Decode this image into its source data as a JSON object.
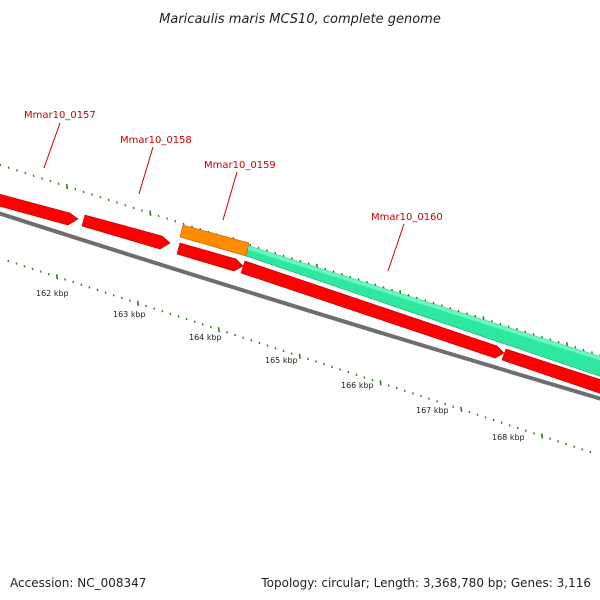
{
  "title": "Maricaulis maris MCS10, complete genome",
  "footer": {
    "accession": "Accession: NC_008347",
    "summary": "Topology: circular; Length: 3,368,780 bp; Genes: 3,116"
  },
  "colors": {
    "gene_forward": "#ff0000",
    "gene_reverse": "#ff0000",
    "highlight_gene": "#ff8c00",
    "feature_band": "#33ee99",
    "backbone": "#888888",
    "tick": "#2e7d1a",
    "label": "#cc0000"
  },
  "gene_labels": [
    "Mmar10_0157",
    "Mmar10_0158",
    "Mmar10_0159",
    "Mmar10_0160"
  ],
  "scale_labels": [
    "162 kbp",
    "163 kbp",
    "164 kbp",
    "165 kbp",
    "166 kbp",
    "167 kbp",
    "168 kbp"
  ]
}
